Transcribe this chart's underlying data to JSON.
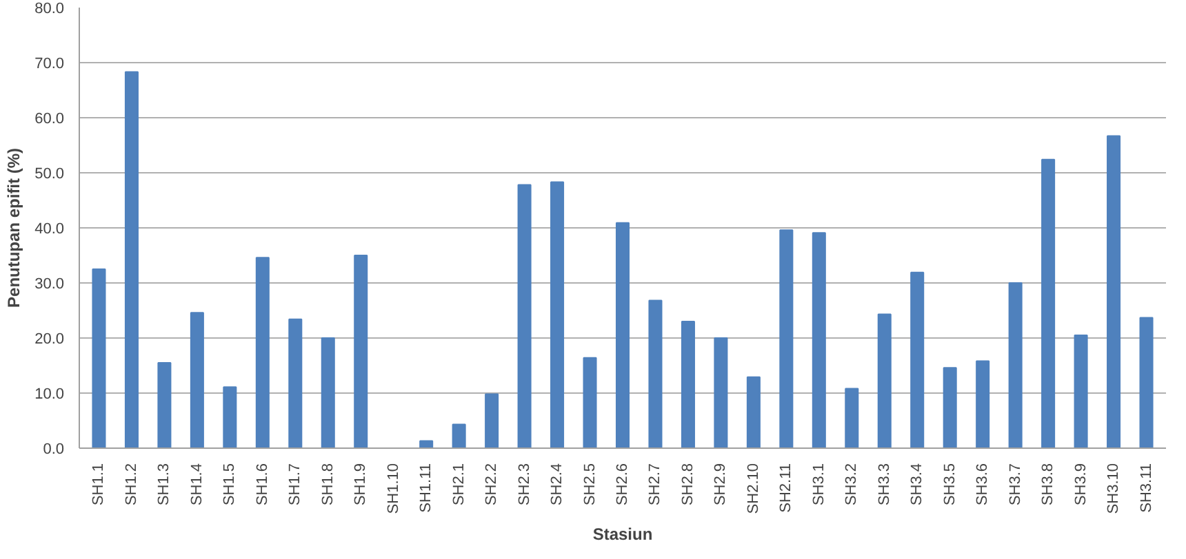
{
  "chart_data": {
    "type": "bar",
    "xlabel": "Stasiun",
    "ylabel": "Penutupan epifit (%)",
    "categories": [
      "SH1.1",
      "SH1.2",
      "SH1.3",
      "SH1.4",
      "SH1.5",
      "SH1.6",
      "SH1.7",
      "SH1.8",
      "SH1.9",
      "SH1.10",
      "SH1.11",
      "SH2.1",
      "SH2.2",
      "SH2.3",
      "SH2.4",
      "SH2.5",
      "SH2.6",
      "SH2.7",
      "SH2.8",
      "SH2.9",
      "SH2.10",
      "SH2.11",
      "SH3.1",
      "SH3.2",
      "SH3.3",
      "SH3.4",
      "SH3.5",
      "SH3.6",
      "SH3.7",
      "SH3.8",
      "SH3.9",
      "SH3.10",
      "SH3.11"
    ],
    "values": [
      32.5,
      68.3,
      15.5,
      24.6,
      11.1,
      34.6,
      23.4,
      20.0,
      35.0,
      0,
      1.3,
      4.3,
      9.8,
      47.8,
      48.3,
      16.4,
      40.9,
      26.8,
      23.0,
      20.0,
      12.9,
      39.6,
      39.1,
      10.8,
      24.3,
      31.9,
      14.6,
      15.8,
      30.0,
      52.4,
      20.5,
      56.7,
      23.7
    ],
    "color": "#4f81bd",
    "ylim": [
      0,
      80
    ],
    "yticks": [
      {
        "value": 0,
        "label": "0.0"
      },
      {
        "value": 10,
        "label": "10.0"
      },
      {
        "value": 20,
        "label": "20.0"
      },
      {
        "value": 30,
        "label": "30.0"
      },
      {
        "value": 40,
        "label": "40.0"
      },
      {
        "value": 50,
        "label": "50.0"
      },
      {
        "value": 60,
        "label": "60.0"
      },
      {
        "value": 70,
        "label": "70.0"
      },
      {
        "value": 80,
        "label": "80.0"
      }
    ],
    "grid": "y"
  }
}
